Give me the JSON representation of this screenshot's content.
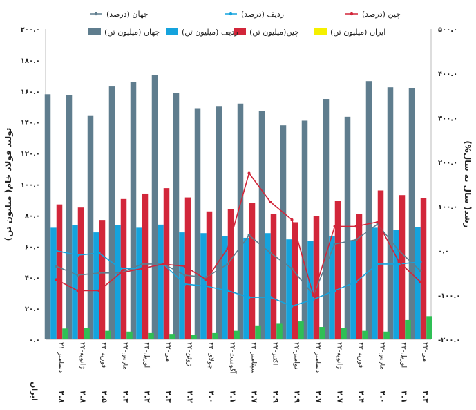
{
  "chart_data": {
    "type": "bar",
    "categories": [
      "دسامبر-۲۱",
      "ژانویه-۲۲",
      "فوریه-۲۲",
      "مارس-۲۲",
      "آوریل-۲۲",
      "می-۲۲",
      "ژوئن-۲۲",
      "جولای-۲۲",
      "آگوست-۲۲",
      "سپتامبر-۲۲",
      "اکتبر-۲۲",
      "نوامبر-۲۲",
      "دسامبر-۲۲",
      "ژانویه-۲۳",
      "فوریه-۲۳",
      "مارس-۲۳",
      "آوریل-۲۳",
      "می-۲۳"
    ],
    "series": [
      {
        "name": "جهان (میلیون تن)",
        "kind": "bar",
        "axis": "left",
        "color": "#5f7d8e",
        "values": [
          158,
          157.5,
          144,
          163,
          166,
          170.5,
          159,
          149,
          150,
          152,
          147,
          138,
          141,
          155,
          143.5,
          166.5,
          162.5,
          162
        ]
      },
      {
        "name": "ردیف (میلیون تن)",
        "kind": "bar",
        "axis": "left",
        "color": "#15a3dd",
        "values": [
          72,
          73.5,
          69,
          73.5,
          72,
          74,
          69,
          68.5,
          66.5,
          65.5,
          68.5,
          64.5,
          63.5,
          66.5,
          64,
          72,
          70.5,
          72.5
        ]
      },
      {
        "name": "چین(میلیون تن)",
        "kind": "bar",
        "axis": "left",
        "color": "#d2263a",
        "values": [
          87,
          85,
          77,
          90.5,
          94,
          97.5,
          91.5,
          82.5,
          84,
          88,
          81,
          75.5,
          79.5,
          89.5,
          81,
          96,
          93,
          91
        ]
      },
      {
        "name": "ایران (میلیون تن)",
        "kind": "bar",
        "axis": "left",
        "color": "#2fbf55",
        "values": [
          7,
          7.5,
          5.5,
          5,
          4.5,
          3.5,
          3,
          4.5,
          5.5,
          9,
          10.5,
          12,
          8,
          7.5,
          5.5,
          5,
          12.5,
          15
        ]
      },
      {
        "name": "جهان (درصد)",
        "kind": "line",
        "axis": "right",
        "color": "#5f7d8e",
        "values": [
          -35,
          -55,
          -50,
          -50,
          -30,
          -30,
          -55,
          -60,
          -30,
          35,
          -5,
          -40,
          -100,
          15,
          25,
          60,
          0,
          -45
        ]
      },
      {
        "name": "ردیف (درصد)",
        "kind": "line",
        "axis": "right",
        "color": "#15a3dd",
        "values": [
          0,
          -10,
          -5,
          -40,
          -40,
          -30,
          -75,
          -80,
          -90,
          -105,
          -105,
          -125,
          -110,
          -90,
          -70,
          -30,
          -30,
          -25
        ]
      },
      {
        "name": "چین (درصد)",
        "kind": "line",
        "axis": "right",
        "color": "#d2263a",
        "values": [
          -65,
          -90,
          -90,
          -50,
          -40,
          -30,
          -35,
          -65,
          5,
          175,
          110,
          70,
          -100,
          55,
          55,
          65,
          -25,
          -70
        ]
      }
    ],
    "legend_order_row1": [
      "چین (درصد)",
      "ردیف (درصد)",
      "جهان (درصد)"
    ],
    "legend_order_row2": [
      "ایران (میلیون تن)",
      "چین(میلیون تن)",
      "ردیف (میلیون تن)",
      "جهان (میلیون تن)"
    ],
    "legend_colors": {
      "ایران (میلیون تن)": "#f5f000"
    },
    "ylabel": "تولید فولاد خام( میلیون تن)",
    "y2label": "رشد( سال به سال%)",
    "ylim": [
      0,
      200
    ],
    "y2lim": [
      -200,
      500
    ],
    "y_ticks": [
      "۰.۰",
      "۲۰.۰",
      "۴۰.۰",
      "۶۰.۰",
      "۸۰.۰",
      "۱۰۰.۰",
      "۱۲۰.۰",
      "۱۴۰.۰",
      "۱۶۰.۰",
      "۱۸۰.۰",
      "۲۰۰.۰"
    ],
    "y2_ticks": [
      "-۲۰۰.۰",
      "-۱۰۰.۰",
      "۰.۰",
      "۱۰۰.۰",
      "۲۰۰.۰",
      "۳۰۰.۰",
      "۴۰۰.۰",
      "۵۰۰.۰"
    ],
    "table_row_label": "ایران",
    "table_row_values": [
      "۲.۸",
      "۲.۸",
      "۲.۵",
      "۲.۳",
      "۲.۲",
      "۲.۳",
      "۲.۲",
      "۲.۰",
      "۲.۱",
      "۲.۷",
      "۲.۹",
      "۲.۹",
      "۲.۷",
      "۲.۷",
      "۲.۴",
      "۲.۰",
      "۳.۱",
      "۳.۳"
    ],
    "grid": false,
    "legend_position": "top"
  }
}
